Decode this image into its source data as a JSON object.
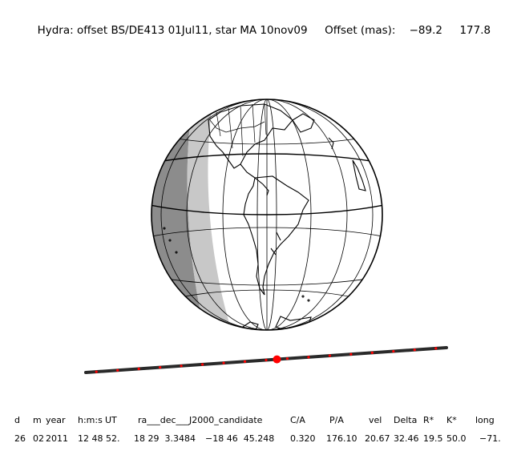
{
  "title": {
    "object": "Hydra: offset BS/DE413 01Jul11, star MA 10nov09",
    "offset_label": "Offset (mas):",
    "offset_x": "−89.2",
    "offset_y": "177.8"
  },
  "chord": {
    "red_markers": 17,
    "center_fraction": 0.53
  },
  "table": {
    "headers": [
      "d",
      "m",
      "year",
      "h:m:s",
      "UT",
      "ra___dec___J2000_candidate",
      "C/A",
      "P/A",
      "vel",
      "Delta",
      "R*",
      "K*",
      "long"
    ],
    "values": [
      "26",
      "02",
      "2011",
      "12 48 52.",
      "18 29  3.3484",
      "−18 46  45.248",
      "0.320",
      "176.10",
      "20.67",
      "32.46",
      "19.5",
      "50.0",
      "−71."
    ]
  },
  "colors": {
    "night_dark": "#8c8c8c",
    "night_light": "#c8c8c8",
    "track": "#2a2a2a",
    "marker": "#ff0000"
  }
}
